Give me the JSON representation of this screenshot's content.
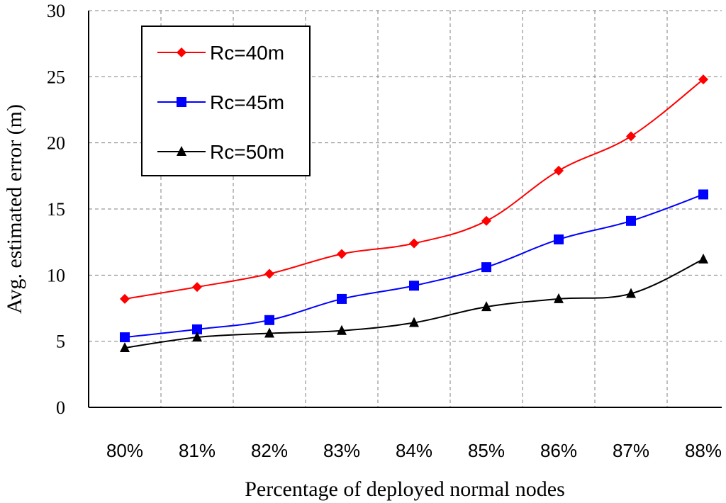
{
  "chart_data": {
    "type": "line",
    "xlabel": "Percentage of deployed normal nodes",
    "ylabel": "Avg. estimated error (m)",
    "categories": [
      "80%",
      "81%",
      "82%",
      "83%",
      "84%",
      "85%",
      "86%",
      "87%",
      "88%"
    ],
    "ylim": [
      0,
      30
    ],
    "yticks": [
      "0",
      "5",
      "10",
      "15",
      "20",
      "25",
      "30"
    ],
    "grid": true,
    "legend_position": "top-left",
    "series": [
      {
        "name": "Rc=40m",
        "color": "#ff0000",
        "marker": "diamond",
        "values": [
          8.2,
          9.1,
          10.1,
          11.6,
          12.4,
          14.1,
          17.9,
          20.5,
          24.8
        ]
      },
      {
        "name": "Rc=45m",
        "color": "#0000ff",
        "marker": "square",
        "values": [
          5.3,
          5.9,
          6.6,
          8.2,
          9.2,
          10.6,
          12.7,
          14.1,
          16.1
        ]
      },
      {
        "name": "Rc=50m",
        "color": "#000000",
        "marker": "triangle",
        "values": [
          4.5,
          5.3,
          5.6,
          5.8,
          6.4,
          7.6,
          8.2,
          8.6,
          11.2
        ]
      }
    ]
  }
}
